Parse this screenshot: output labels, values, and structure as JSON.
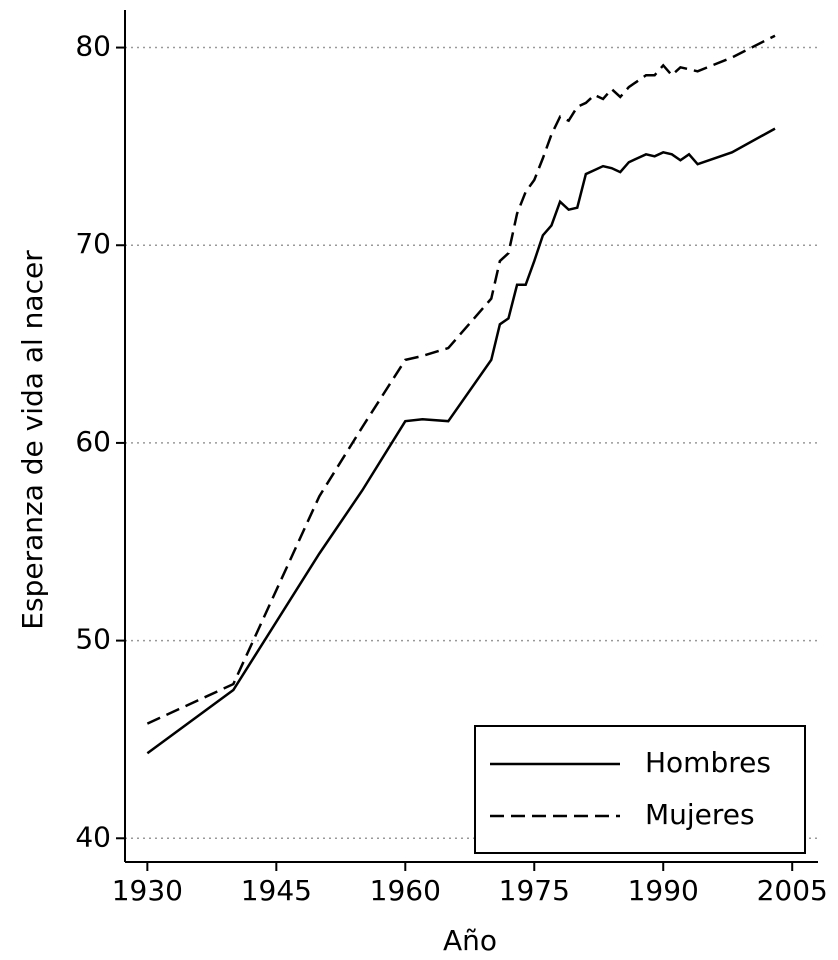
{
  "chart_data": {
    "type": "line",
    "xlabel": "Año",
    "ylabel": "Esperanza de vida al nacer",
    "x": [
      1930,
      1940,
      1950,
      1955,
      1960,
      1962,
      1965,
      1970,
      1971,
      1972,
      1973,
      1974,
      1975,
      1976,
      1977,
      1978,
      1979,
      1980,
      1981,
      1982,
      1983,
      1984,
      1985,
      1986,
      1987,
      1988,
      1989,
      1990,
      1991,
      1992,
      1993,
      1994,
      1998,
      2003
    ],
    "series": [
      {
        "name": "Hombres",
        "color": "#000000",
        "style": "solid",
        "values": [
          44.3,
          47.5,
          54.4,
          57.6,
          61.1,
          61.2,
          61.1,
          64.2,
          66.0,
          66.3,
          68.0,
          68.0,
          69.2,
          70.5,
          71.0,
          72.2,
          71.8,
          71.9,
          73.6,
          73.8,
          74.0,
          73.9,
          73.7,
          74.2,
          74.4,
          74.6,
          74.5,
          74.7,
          74.6,
          74.3,
          74.6,
          74.1,
          74.7,
          75.9
        ]
      },
      {
        "name": "Mujeres",
        "color": "#000000",
        "style": "dashed",
        "values": [
          45.8,
          47.8,
          57.3,
          60.8,
          64.2,
          64.4,
          64.8,
          67.3,
          69.2,
          69.6,
          71.6,
          72.7,
          73.3,
          74.4,
          75.6,
          76.5,
          76.3,
          77.0,
          77.2,
          77.6,
          77.4,
          77.9,
          77.5,
          78.0,
          78.3,
          78.6,
          78.6,
          79.1,
          78.6,
          79.0,
          78.9,
          78.8,
          79.5,
          80.6
        ]
      }
    ],
    "xlim": [
      1927.4,
      2008
    ],
    "xticks": [
      1930,
      1945,
      1960,
      1975,
      1990,
      2005
    ],
    "ylim": [
      38.8,
      81.9
    ],
    "yticks": [
      40,
      50,
      60,
      70,
      80
    ],
    "grid": true,
    "legend": "lower right"
  }
}
